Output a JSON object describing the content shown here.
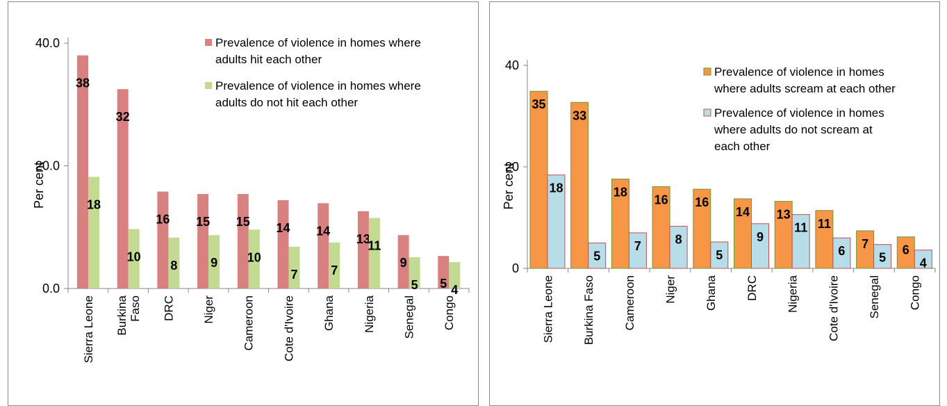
{
  "chart_data": [
    {
      "type": "bar",
      "ylabel": "Per cent",
      "ylim": [
        0,
        40
      ],
      "yticks": [
        "0.0",
        "20.0",
        "40.0"
      ],
      "ytick_values": [
        0,
        20,
        40
      ],
      "categories": [
        "Sierra Leone",
        "Burkina Faso",
        "DRC",
        "Niger",
        "Cameroon",
        "Cote d'Ivoire",
        "Ghana",
        "Nigeria",
        "Senegal",
        "Congo"
      ],
      "category_lines": [
        [
          "Sierra Leone"
        ],
        [
          "Burkina",
          "Faso"
        ],
        [
          "DRC"
        ],
        [
          "Niger"
        ],
        [
          "Cameroon"
        ],
        [
          "Cote d'Ivoire"
        ],
        [
          "Ghana"
        ],
        [
          "Nigeria"
        ],
        [
          "Senegal"
        ],
        [
          "Congo"
        ]
      ],
      "series": [
        {
          "name": "Prevalence of violence in homes where adults hit each other",
          "legend_lines": [
            "Prevalence of violence in homes where",
            "adults hit each other"
          ],
          "values": [
            38,
            32.5,
            15.8,
            15.4,
            15.4,
            14.4,
            13.9,
            12.6,
            8.7,
            5.3
          ],
          "labels": [
            "38",
            "32",
            "16",
            "15",
            "15",
            "14",
            "14",
            "13",
            "9",
            "5"
          ],
          "color": "#d98080"
        },
        {
          "name": "Prevalence of violence in homes where adults do not hit each other",
          "legend_lines": [
            "Prevalence of violence in homes where",
            "adults do not hit each other"
          ],
          "values": [
            18.2,
            9.7,
            8.3,
            8.7,
            9.6,
            6.8,
            7.5,
            11.5,
            5.1,
            4.3
          ],
          "labels": [
            "18",
            "10",
            "8",
            "9",
            "10",
            "7",
            "7",
            "11",
            "5",
            "4"
          ],
          "color": "#c3da92"
        }
      ]
    },
    {
      "type": "bar",
      "ylabel": "Per cent",
      "ylim": [
        0,
        40
      ],
      "yticks": [
        "0",
        "20",
        "40"
      ],
      "ytick_values": [
        0,
        20,
        40
      ],
      "categories": [
        "Sierra Leone",
        "Burkina Faso",
        "Cameroon",
        "Niger",
        "Ghana",
        "DRC",
        "Nigeria",
        "Cote d'Ivoire",
        "Senegal",
        "Congo"
      ],
      "category_lines": [
        [
          "Sierra Leone"
        ],
        [
          "Burkina Faso"
        ],
        [
          "Cameroon"
        ],
        [
          "Niger"
        ],
        [
          "Ghana"
        ],
        [
          "DRC"
        ],
        [
          "Nigeria"
        ],
        [
          "Cote d'Ivoire"
        ],
        [
          "Senegal"
        ],
        [
          "Congo"
        ]
      ],
      "series": [
        {
          "name": "Prevalence of violence in homes where adults scream at each other",
          "legend_lines": [
            "Prevalence of violence in homes",
            "where adults scream at each other"
          ],
          "values": [
            34.9,
            32.7,
            17.6,
            16.1,
            15.6,
            13.7,
            13.2,
            11.4,
            7.4,
            6.2
          ],
          "labels": [
            "35",
            "33",
            "18",
            "16",
            "16",
            "14",
            "13",
            "11",
            "7",
            "6"
          ],
          "color": "#f79646",
          "stroke": "#6a9a34"
        },
        {
          "name": "Prevalence of violence in homes where adults do not scream at each other",
          "legend_lines": [
            "Prevalence of violence in homes",
            "where adults do not scream at",
            "each other"
          ],
          "values": [
            18.4,
            5.0,
            7.0,
            8.3,
            5.2,
            8.8,
            10.6,
            6.0,
            4.7,
            3.6
          ],
          "labels": [
            "18",
            "5",
            "7",
            "8",
            "5",
            "9",
            "11",
            "6",
            "5",
            "4"
          ],
          "color": "#b7dde8",
          "stroke": "#c0504d"
        }
      ]
    }
  ]
}
